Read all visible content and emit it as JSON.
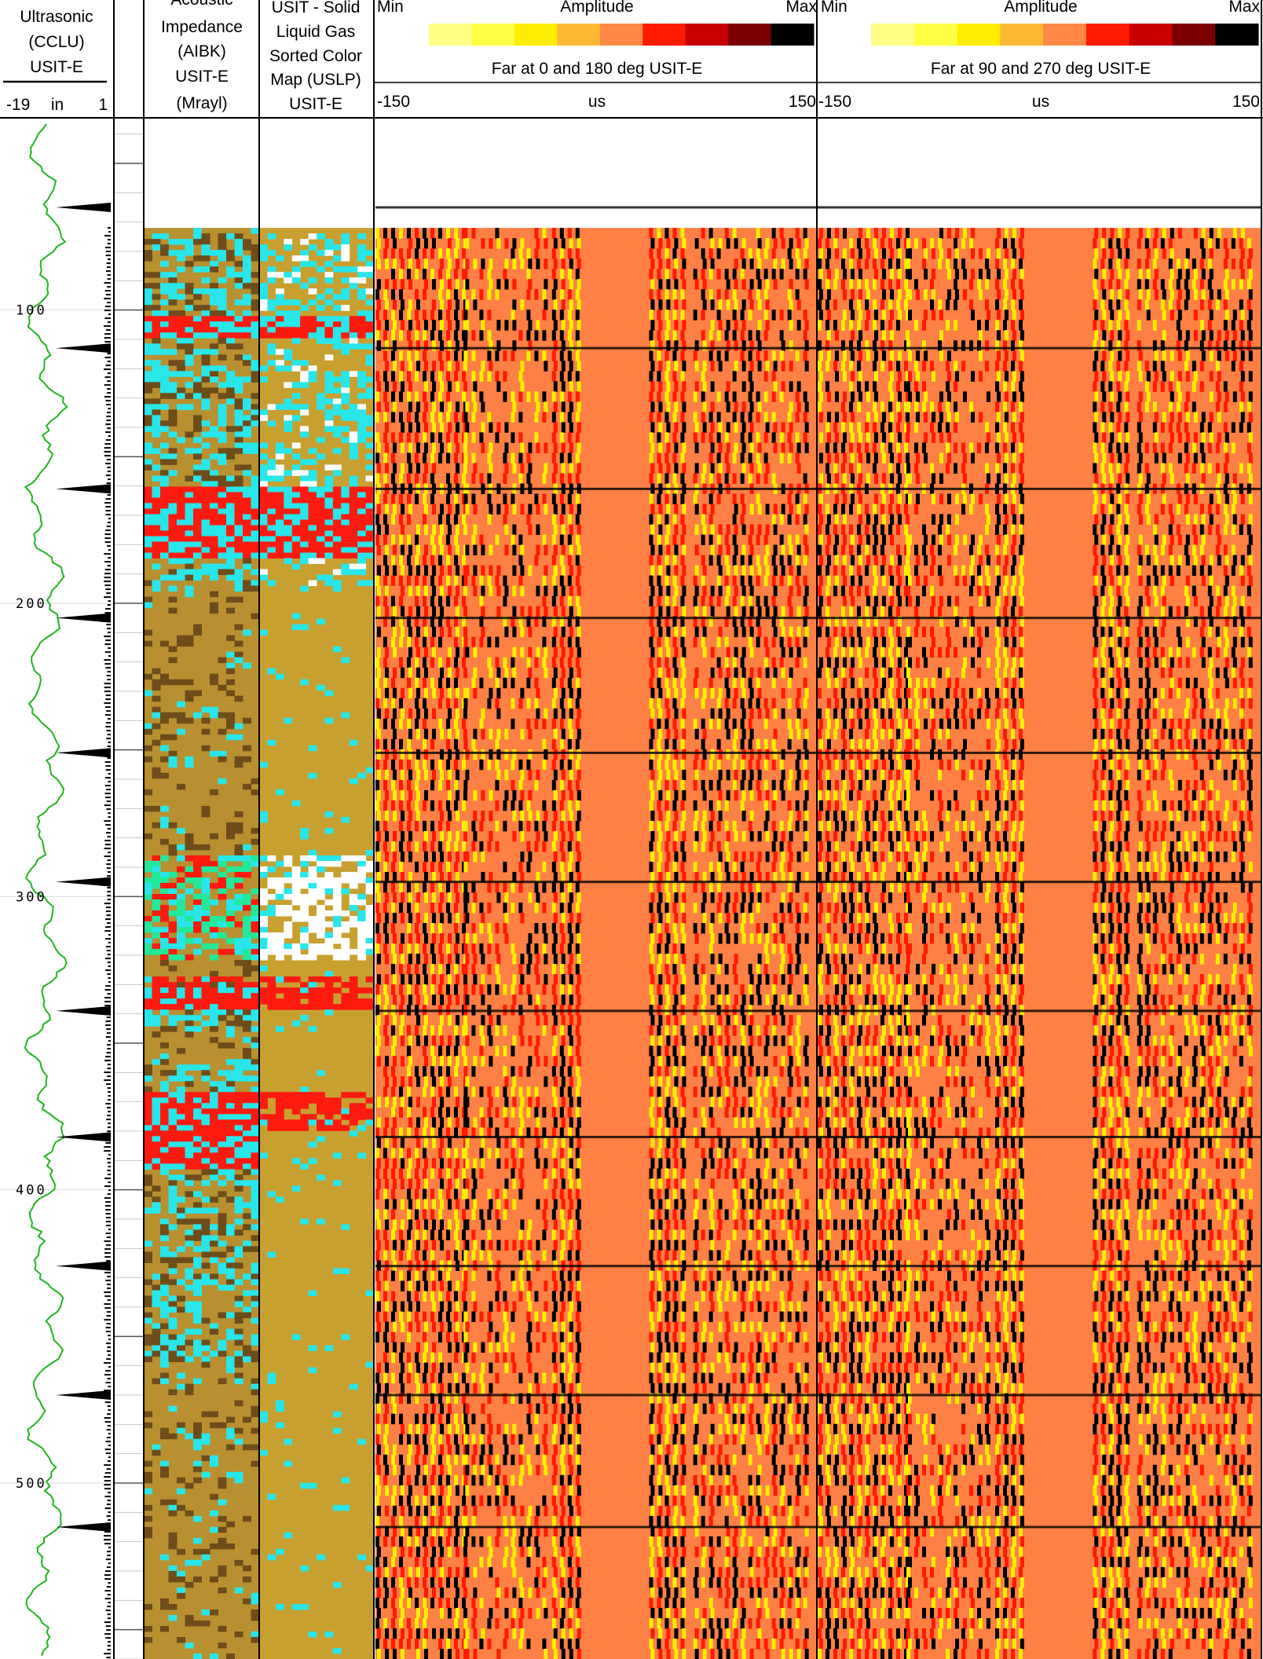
{
  "tracks": {
    "ccl": {
      "title_lines": [
        "Ultrasonic",
        "(CCLU)",
        "USIT-E"
      ],
      "scale_min": "-19",
      "scale_unit": "in",
      "scale_max": "1",
      "color": "#22b422"
    },
    "aibk": {
      "title_lines": [
        "Acoustic",
        "Impedance",
        "(AIBK)",
        "USIT-E",
        "(Mrayl)"
      ]
    },
    "uslp": {
      "title_lines": [
        "USIT - Solid",
        "Liquid Gas",
        "Sorted Color",
        "Map (USLP)",
        "USIT-E"
      ]
    },
    "wave1": {
      "palette_min": "Min",
      "palette_title": "Amplitude",
      "palette_max": "Max",
      "subtitle": "Far at 0 and 180 deg USIT-E",
      "scale_min": "-150",
      "scale_unit": "us",
      "scale_max": "150"
    },
    "wave2": {
      "palette_min": "Min",
      "palette_title": "Amplitude",
      "palette_max": "Max",
      "subtitle": "Far at 90 and 270 deg USIT-E",
      "scale_min": "-150",
      "scale_unit": "us",
      "scale_max": "150"
    }
  },
  "depth_labels": [
    "100",
    "200",
    "300",
    "400",
    "500"
  ],
  "amplitude_palette": [
    "#ffff88",
    "#ffff44",
    "#ffee00",
    "#ffb833",
    "#ff8844",
    "#ff1a00",
    "#c80000",
    "#7a0000",
    "#000000"
  ],
  "colors": {
    "aibk_base": "#b89030",
    "aibk_dark": "#6e4d1a",
    "cyan": "#29e6ea",
    "red": "#ff1a10",
    "uslp_base": "#c8a030",
    "wave_bg": "#ff8044",
    "grid": "#c8c8c8"
  },
  "chart_data": {
    "type": "well-log",
    "depth_range": [
      35,
      560
    ],
    "depth_ticks": [
      100,
      200,
      300,
      400,
      500
    ],
    "tracks": [
      {
        "name": "Ultrasonic (CCLU) USIT-E",
        "unit": "in",
        "xlim": [
          -19,
          1
        ],
        "curve": "CCLU"
      },
      {
        "name": "Acoustic Impedance (AIBK) USIT-E",
        "unit": "Mrayl",
        "type": "image"
      },
      {
        "name": "USIT - Solid Liquid Gas Sorted Color Map (USLP) USIT-E",
        "type": "image"
      },
      {
        "name": "Far at 0 and 180 deg USIT-E",
        "unit": "us",
        "xlim": [
          -150,
          150
        ],
        "type": "waveform"
      },
      {
        "name": "Far at 90 and 270 deg USIT-E",
        "unit": "us",
        "xlim": [
          -150,
          150
        ],
        "type": "waveform"
      }
    ],
    "collar_depths": [
      65,
      113,
      161,
      205,
      251,
      295,
      339,
      382,
      426,
      470,
      515
    ],
    "data_start_depth": 72
  }
}
